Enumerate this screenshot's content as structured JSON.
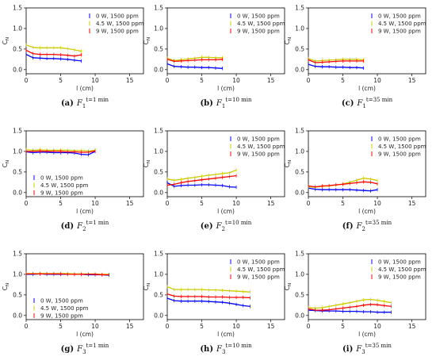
{
  "figure": {
    "y_label": "C",
    "y_label_sub": "N",
    "x_label": "l (cm)",
    "x_ticks": [
      0,
      5,
      10,
      15
    ],
    "y_ticks": [
      "0.0",
      "0.5",
      "1.0",
      "1.5"
    ]
  },
  "chart_data": [
    {
      "type": "line",
      "caption_letter": "(a)",
      "caption_sub": "1",
      "caption_sup": "t=1 min",
      "xlabel": "l (cm)",
      "ylabel": "C_N",
      "xlim": [
        0,
        17
      ],
      "ylim": [
        -0.1,
        1.5
      ],
      "legend": "top-right",
      "series": [
        {
          "name": "0 W, 1500 ppm",
          "color": "#0000ff",
          "x": [
            0,
            1,
            2,
            3,
            4,
            5,
            6,
            7,
            8
          ],
          "y": [
            0.37,
            0.29,
            0.28,
            0.27,
            0.27,
            0.26,
            0.25,
            0.23,
            0.21
          ]
        },
        {
          "name": "4.5 W, 1500 ppm",
          "color": "#cccc00",
          "x": [
            0,
            1,
            2,
            3,
            4,
            5,
            6,
            7,
            8
          ],
          "y": [
            0.6,
            0.54,
            0.53,
            0.53,
            0.53,
            0.53,
            0.51,
            0.48,
            0.45
          ]
        },
        {
          "name": "9 W, 1500 ppm",
          "color": "#ff0000",
          "x": [
            0,
            1,
            2,
            3,
            4,
            5,
            6,
            7,
            8
          ],
          "y": [
            0.47,
            0.39,
            0.37,
            0.37,
            0.37,
            0.36,
            0.35,
            0.33,
            0.36
          ]
        }
      ]
    },
    {
      "type": "line",
      "caption_letter": "(b)",
      "caption_sub": "1",
      "caption_sup": "t=10 min",
      "xlabel": "l (cm)",
      "ylabel": "C_N",
      "xlim": [
        0,
        17
      ],
      "ylim": [
        -0.1,
        1.5
      ],
      "legend": "top-right",
      "series": [
        {
          "name": "0 W, 1500 ppm",
          "color": "#0000ff",
          "x": [
            0,
            1,
            2,
            3,
            4,
            5,
            6,
            7,
            8
          ],
          "y": [
            0.14,
            0.08,
            0.07,
            0.06,
            0.06,
            0.05,
            0.05,
            0.04,
            0.03
          ]
        },
        {
          "name": "4.5 W, 1500 ppm",
          "color": "#cccc00",
          "x": [
            0,
            1,
            2,
            3,
            4,
            5,
            6,
            7,
            8
          ],
          "y": [
            0.28,
            0.22,
            0.24,
            0.26,
            0.28,
            0.3,
            0.3,
            0.29,
            0.29
          ]
        },
        {
          "name": "9 W, 1500 ppm",
          "color": "#ff0000",
          "x": [
            0,
            1,
            2,
            3,
            4,
            5,
            6,
            7,
            8
          ],
          "y": [
            0.25,
            0.2,
            0.21,
            0.22,
            0.23,
            0.24,
            0.24,
            0.24,
            0.25
          ]
        }
      ]
    },
    {
      "type": "line",
      "caption_letter": "(c)",
      "caption_sub": "1",
      "caption_sup": "t=35 min",
      "xlabel": "l (cm)",
      "ylabel": "C_N",
      "xlim": [
        0,
        17
      ],
      "ylim": [
        -0.1,
        1.5
      ],
      "legend": "top-right",
      "series": [
        {
          "name": "0 W, 1500 ppm",
          "color": "#0000ff",
          "x": [
            0,
            1,
            2,
            3,
            4,
            5,
            6,
            7,
            8
          ],
          "y": [
            0.13,
            0.08,
            0.07,
            0.07,
            0.06,
            0.06,
            0.05,
            0.05,
            0.04
          ]
        },
        {
          "name": "4.5 W, 1500 ppm",
          "color": "#cccc00",
          "x": [
            0,
            1,
            2,
            3,
            4,
            5,
            6,
            7,
            8
          ],
          "y": [
            0.27,
            0.21,
            0.22,
            0.23,
            0.24,
            0.25,
            0.25,
            0.25,
            0.24
          ]
        },
        {
          "name": "9 W, 1500 ppm",
          "color": "#ff0000",
          "x": [
            0,
            1,
            2,
            3,
            4,
            5,
            6,
            7,
            8
          ],
          "y": [
            0.24,
            0.17,
            0.18,
            0.19,
            0.2,
            0.21,
            0.21,
            0.21,
            0.21
          ]
        }
      ]
    },
    {
      "type": "line",
      "caption_letter": "(d)",
      "caption_sub": "2",
      "caption_sup": "t=1 min",
      "xlabel": "l (cm)",
      "ylabel": "C_N",
      "xlim": [
        0,
        17
      ],
      "ylim": [
        -0.1,
        1.5
      ],
      "legend": "lower-left",
      "series": [
        {
          "name": "0 W, 1500 ppm",
          "color": "#0000ff",
          "x": [
            0,
            1,
            2,
            3,
            4,
            5,
            6,
            7,
            8,
            9,
            10
          ],
          "y": [
            0.99,
            0.97,
            0.98,
            0.98,
            0.97,
            0.97,
            0.97,
            0.96,
            0.93,
            0.92,
            1.0
          ]
        },
        {
          "name": "4.5 W, 1500 ppm",
          "color": "#cccc00",
          "x": [
            0,
            1,
            2,
            3,
            4,
            5,
            6,
            7,
            8,
            9,
            10
          ],
          "y": [
            1.04,
            1.03,
            1.04,
            1.03,
            1.03,
            1.03,
            1.03,
            1.02,
            1.02,
            1.01,
            1.03
          ]
        },
        {
          "name": "9 W, 1500 ppm",
          "color": "#ff0000",
          "x": [
            0,
            1,
            2,
            3,
            4,
            5,
            6,
            7,
            8,
            9,
            10
          ],
          "y": [
            1.0,
            1.0,
            1.01,
            1.0,
            1.0,
            1.0,
            0.99,
            0.99,
            0.98,
            0.98,
            1.01
          ]
        }
      ]
    },
    {
      "type": "line",
      "caption_letter": "(e)",
      "caption_sub": "2",
      "caption_sup": "t=10 min",
      "xlabel": "l (cm)",
      "ylabel": "C_N",
      "xlim": [
        0,
        17
      ],
      "ylim": [
        -0.1,
        1.5
      ],
      "legend": "top-right",
      "series": [
        {
          "name": "0 W, 1500 ppm",
          "color": "#0000ff",
          "x": [
            0,
            1,
            2,
            3,
            4,
            5,
            6,
            7,
            8,
            9,
            10
          ],
          "y": [
            0.24,
            0.15,
            0.17,
            0.18,
            0.18,
            0.19,
            0.19,
            0.18,
            0.17,
            0.14,
            0.13
          ]
        },
        {
          "name": "4.5 W, 1500 ppm",
          "color": "#cccc00",
          "x": [
            0,
            1,
            2,
            3,
            4,
            5,
            6,
            7,
            8,
            9,
            10
          ],
          "y": [
            0.33,
            0.3,
            0.32,
            0.35,
            0.37,
            0.4,
            0.42,
            0.44,
            0.46,
            0.48,
            0.55
          ]
        },
        {
          "name": "9 W, 1500 ppm",
          "color": "#ff0000",
          "x": [
            0,
            1,
            2,
            3,
            4,
            5,
            6,
            7,
            8,
            9,
            10
          ],
          "y": [
            0.18,
            0.2,
            0.24,
            0.27,
            0.29,
            0.31,
            0.33,
            0.35,
            0.37,
            0.39,
            0.41
          ]
        }
      ]
    },
    {
      "type": "line",
      "caption_letter": "(f)",
      "caption_sub": "2",
      "caption_sup": "t=35 min",
      "xlabel": "l (cm)",
      "ylabel": "C_N",
      "xlim": [
        0,
        17
      ],
      "ylim": [
        -0.1,
        1.5
      ],
      "legend": "top-right",
      "series": [
        {
          "name": "0 W, 1500 ppm",
          "color": "#0000ff",
          "x": [
            0,
            1,
            2,
            3,
            4,
            5,
            6,
            7,
            8,
            9,
            10
          ],
          "y": [
            0.11,
            0.08,
            0.07,
            0.07,
            0.07,
            0.07,
            0.07,
            0.06,
            0.05,
            0.04,
            0.07
          ]
        },
        {
          "name": "4.5 W, 1500 ppm",
          "color": "#cccc00",
          "x": [
            0,
            1,
            2,
            3,
            4,
            5,
            6,
            7,
            8,
            9,
            10
          ],
          "y": [
            0.14,
            0.13,
            0.15,
            0.16,
            0.18,
            0.21,
            0.25,
            0.3,
            0.35,
            0.33,
            0.29
          ]
        },
        {
          "name": "9 W, 1500 ppm",
          "color": "#ff0000",
          "x": [
            0,
            1,
            2,
            3,
            4,
            5,
            6,
            7,
            8,
            9,
            10
          ],
          "y": [
            0.16,
            0.14,
            0.16,
            0.17,
            0.19,
            0.2,
            0.22,
            0.24,
            0.26,
            0.25,
            0.21
          ]
        }
      ]
    },
    {
      "type": "line",
      "caption_letter": "(g)",
      "caption_sub": "3",
      "caption_sup": "t=1 min",
      "xlabel": "l (cm)",
      "ylabel": "C_N",
      "xlim": [
        0,
        17
      ],
      "ylim": [
        -0.1,
        1.5
      ],
      "legend": "lower-left",
      "series": [
        {
          "name": "0 W, 1500 ppm",
          "color": "#0000ff",
          "x": [
            0,
            1,
            2,
            3,
            4,
            5,
            6,
            7,
            8,
            9,
            10,
            11,
            12
          ],
          "y": [
            1.0,
            1.0,
            1.01,
            1.0,
            1.0,
            1.0,
            1.0,
            1.0,
            1.0,
            0.99,
            0.99,
            0.99,
            0.98
          ]
        },
        {
          "name": "4.5 W, 1500 ppm",
          "color": "#cccc00",
          "x": [
            0,
            1,
            2,
            3,
            4,
            5,
            6,
            7,
            8,
            9,
            10,
            11,
            12
          ],
          "y": [
            1.02,
            1.02,
            1.02,
            1.02,
            1.02,
            1.02,
            1.02,
            1.01,
            1.01,
            1.01,
            1.01,
            1.0,
            1.0
          ]
        },
        {
          "name": "9 W, 1500 ppm",
          "color": "#ff0000",
          "x": [
            0,
            1,
            2,
            3,
            4,
            5,
            6,
            7,
            8,
            9,
            10,
            11,
            12
          ],
          "y": [
            1.01,
            1.01,
            1.01,
            1.01,
            1.01,
            1.01,
            1.0,
            1.0,
            1.0,
            1.0,
            1.0,
            0.99,
            0.99
          ]
        }
      ]
    },
    {
      "type": "line",
      "caption_letter": "(h)",
      "caption_sub": "3",
      "caption_sup": "t=10 min",
      "xlabel": "l (cm)",
      "ylabel": "C_N",
      "xlim": [
        0,
        17
      ],
      "ylim": [
        -0.1,
        1.5
      ],
      "legend": "top-right",
      "series": [
        {
          "name": "0 W, 1500 ppm",
          "color": "#0000ff",
          "x": [
            0,
            1,
            2,
            3,
            4,
            5,
            6,
            7,
            8,
            9,
            10,
            11,
            12
          ],
          "y": [
            0.42,
            0.36,
            0.35,
            0.35,
            0.35,
            0.35,
            0.34,
            0.33,
            0.32,
            0.3,
            0.27,
            0.24,
            0.22
          ]
        },
        {
          "name": "4.5 W, 1500 ppm",
          "color": "#cccc00",
          "x": [
            0,
            1,
            2,
            3,
            4,
            5,
            6,
            7,
            8,
            9,
            10,
            11,
            12
          ],
          "y": [
            0.7,
            0.63,
            0.63,
            0.63,
            0.63,
            0.63,
            0.62,
            0.62,
            0.61,
            0.6,
            0.59,
            0.58,
            0.57
          ]
        },
        {
          "name": "9 W, 1500 ppm",
          "color": "#ff0000",
          "x": [
            0,
            1,
            2,
            3,
            4,
            5,
            6,
            7,
            8,
            9,
            10,
            11,
            12
          ],
          "y": [
            0.52,
            0.47,
            0.46,
            0.46,
            0.46,
            0.46,
            0.45,
            0.45,
            0.45,
            0.44,
            0.44,
            0.44,
            0.43
          ]
        }
      ]
    },
    {
      "type": "line",
      "caption_letter": "(i)",
      "caption_sub": "3",
      "caption_sup": "t=35 min",
      "xlabel": "l (cm)",
      "ylabel": "C_N",
      "xlim": [
        0,
        17
      ],
      "ylim": [
        -0.1,
        1.5
      ],
      "legend": "top-right",
      "series": [
        {
          "name": "0 W, 1500 ppm",
          "color": "#0000ff",
          "x": [
            0,
            1,
            2,
            3,
            4,
            5,
            6,
            7,
            8,
            9,
            10,
            11,
            12
          ],
          "y": [
            0.13,
            0.12,
            0.11,
            0.11,
            0.11,
            0.1,
            0.1,
            0.1,
            0.09,
            0.09,
            0.08,
            0.08,
            0.08
          ]
        },
        {
          "name": "4.5 W, 1500 ppm",
          "color": "#cccc00",
          "x": [
            0,
            1,
            2,
            3,
            4,
            5,
            6,
            7,
            8,
            9,
            10,
            11,
            12
          ],
          "y": [
            0.19,
            0.18,
            0.19,
            0.22,
            0.25,
            0.28,
            0.31,
            0.35,
            0.38,
            0.39,
            0.37,
            0.34,
            0.31
          ]
        },
        {
          "name": "9 W, 1500 ppm",
          "color": "#ff0000",
          "x": [
            0,
            1,
            2,
            3,
            4,
            5,
            6,
            7,
            8,
            9,
            10,
            11,
            12
          ],
          "y": [
            0.16,
            0.13,
            0.13,
            0.14,
            0.16,
            0.18,
            0.2,
            0.22,
            0.25,
            0.27,
            0.26,
            0.24,
            0.22
          ]
        }
      ]
    }
  ]
}
